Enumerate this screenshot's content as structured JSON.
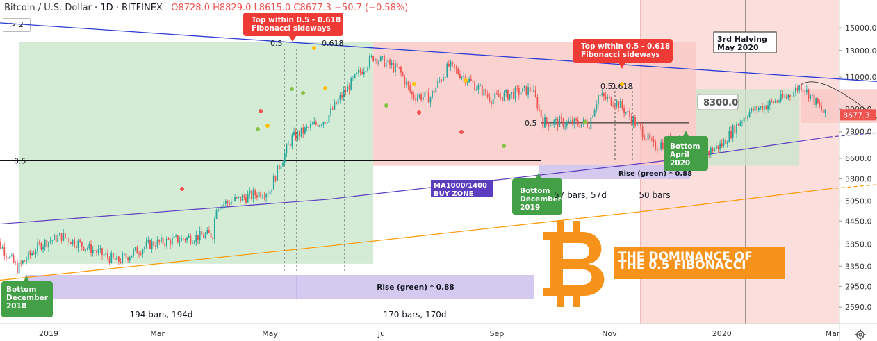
{
  "header": {
    "symbol": "Bitcoin / U.S. Dollar",
    "interval": "1D",
    "exchange": "BITFINEX",
    "ohlc": "O8728.0  H8829.0  L8615.0  C8677.3  −50.7 (−0.58%)"
  },
  "indicator_toggle": "> 2",
  "colors": {
    "bull": "#26a69a",
    "bear": "#ef5350",
    "green_zone": "#c8e6c9",
    "red_zone": "#f8c7c4",
    "purple": "#5c3cbf",
    "orange": "#ff9800",
    "blue_line": "#2b3bd6",
    "callout_red": "#f03a35",
    "callout_green": "#43a047"
  },
  "chart_data": {
    "type": "candlestick",
    "title": "Bitcoin / U.S. Dollar, 1D, BITFINEX",
    "y_scale": "log",
    "y_ticks": [
      2590,
      2950,
      3350,
      3850,
      4450,
      5050,
      5800,
      6600,
      7800,
      9000,
      11000,
      13000,
      15000
    ],
    "y_tick_labels": [
      "2590.0",
      "2950.0",
      "3350.0",
      "3850.0",
      "4450.0",
      "5050.0",
      "5800.0",
      "6600.0",
      "7800.0",
      "9000.0",
      "11000.0",
      "13000.0",
      "15000.0"
    ],
    "x_ticks": [
      "2019",
      "Mar",
      "May",
      "Jul",
      "Sep",
      "Nov",
      "2020",
      "Mar"
    ],
    "ylim": [
      2300,
      17000
    ],
    "last_price": 8677.3,
    "last_price_label": "8677.3",
    "price_path": [
      [
        "2018-12-01",
        4100
      ],
      [
        "2018-12-15",
        3300
      ],
      [
        "2018-12-28",
        3850
      ],
      [
        "2019-01-08",
        4050
      ],
      [
        "2019-02-07",
        3450
      ],
      [
        "2019-02-25",
        3850
      ],
      [
        "2019-03-31",
        4100
      ],
      [
        "2019-04-02",
        4900
      ],
      [
        "2019-05-01",
        5400
      ],
      [
        "2019-05-13",
        7500
      ],
      [
        "2019-06-01",
        8500
      ],
      [
        "2019-06-26",
        12500
      ],
      [
        "2019-07-10",
        11500
      ],
      [
        "2019-07-17",
        9800
      ],
      [
        "2019-07-27",
        9700
      ],
      [
        "2019-08-06",
        11800
      ],
      [
        "2019-08-29",
        9600
      ],
      [
        "2019-09-20",
        10200
      ],
      [
        "2019-09-26",
        8300
      ],
      [
        "2019-10-21",
        8200
      ],
      [
        "2019-10-26",
        9800
      ],
      [
        "2019-11-06",
        9300
      ],
      [
        "2019-11-25",
        7100
      ],
      [
        "2019-12-08",
        7500
      ],
      [
        "2019-12-18",
        6600
      ],
      [
        "2020-01-01",
        7200
      ],
      [
        "2020-01-15",
        8800
      ],
      [
        "2020-02-05",
        9700
      ],
      [
        "2020-02-13",
        10450
      ],
      [
        "2020-02-26",
        8677
      ]
    ],
    "moving_averages": [
      {
        "name": "MA1000",
        "color": "#5c3cbf",
        "points": [
          [
            "2018-12-01",
            4350
          ],
          [
            "2019-06-01",
            5100
          ],
          [
            "2019-12-01",
            6500
          ],
          [
            "2020-02-28",
            7550
          ]
        ]
      },
      {
        "name": "MA1400",
        "color": "#ff9800",
        "points": [
          [
            "2018-12-01",
            3050
          ],
          [
            "2019-06-01",
            3800
          ],
          [
            "2019-12-01",
            4800
          ],
          [
            "2020-02-28",
            5450
          ]
        ]
      }
    ],
    "blue_trendline": [
      [
        "2018-11-25",
        15600
      ],
      [
        "2020-06-20",
        10000
      ]
    ],
    "fib_levels": [
      {
        "label": "0.5",
        "price": 6500
      },
      {
        "label": "0.5",
        "price": 12600
      },
      {
        "label": "0.618",
        "price": 12600
      },
      {
        "label": "0.5",
        "price": 8250
      },
      {
        "label": "0.5",
        "price": 10050
      },
      {
        "label": "0.618",
        "price": 10050
      }
    ],
    "zones": [
      {
        "kind": "rise",
        "from": "2018-12-16",
        "to": "2019-06-26",
        "low": 3400,
        "high": 13700
      },
      {
        "kind": "fall",
        "from": "2019-06-26",
        "to": "2019-12-18",
        "low": 6300,
        "high": 13700
      },
      {
        "kind": "rise",
        "from": "2019-12-18",
        "to": "2020-02-12",
        "low": 6300,
        "high": 10200
      },
      {
        "kind": "fall",
        "from": "2020-02-13",
        "to": "2020-04-15",
        "low": 8250,
        "high": 10200
      }
    ],
    "projection": {
      "label": "8300.0",
      "start_date": "2020-02-26",
      "target_date": "2020-04-15",
      "target_price": 8300,
      "end_date": "2020-06-10",
      "end_price": 13000
    },
    "annotations": [
      {
        "text": "Top within 0.5 - 0.618 Fibonacci sideways",
        "lines": [
          "Top within 0.5 - 0.618",
          "Fibonacci sideways"
        ],
        "kind": "callout-red"
      },
      {
        "text": "Top within 0.5 - 0.618 Fibonacci sideways",
        "lines": [
          "Top within 0.5 - 0.618",
          "Fibonacci sideways"
        ],
        "kind": "callout-red"
      },
      {
        "text": "Bottom December 2018",
        "lines": [
          "Bottom",
          "December",
          "2018"
        ],
        "kind": "callout-green"
      },
      {
        "text": "Bottom December 2019",
        "lines": [
          "Bottom",
          "December",
          "2019"
        ],
        "kind": "callout-green"
      },
      {
        "text": "Bottom April 2020",
        "lines": [
          "Bottom",
          "April",
          "2020"
        ],
        "kind": "callout-green"
      },
      {
        "text": "3rd Halving May 2020",
        "lines": [
          "3rd Halving",
          "May 2020"
        ],
        "kind": "note-box"
      },
      {
        "text": "MA1000/1400 BUY ZONE",
        "lines": [
          "MA1000/1400",
          "BUY ZONE"
        ],
        "kind": "purple-label"
      },
      {
        "text": "Rise (green) * 0.88",
        "kind": "bar-label"
      },
      {
        "text": "Rise (green) * 0.88",
        "kind": "bar-label"
      },
      {
        "text": "194 bars, 194d",
        "kind": "range-text"
      },
      {
        "text": "170 bars, 170d",
        "kind": "range-text"
      },
      {
        "text": "57 bars, 57d",
        "kind": "range-text"
      },
      {
        "text": "50 bars",
        "kind": "range-text"
      },
      {
        "text": "THE DOMINANCE OF THE 0.5 FIBONACCI",
        "lines": [
          "THE DOMINANCE OF",
          "THE 0.5 FIBONACCI"
        ],
        "kind": "headline"
      }
    ]
  }
}
